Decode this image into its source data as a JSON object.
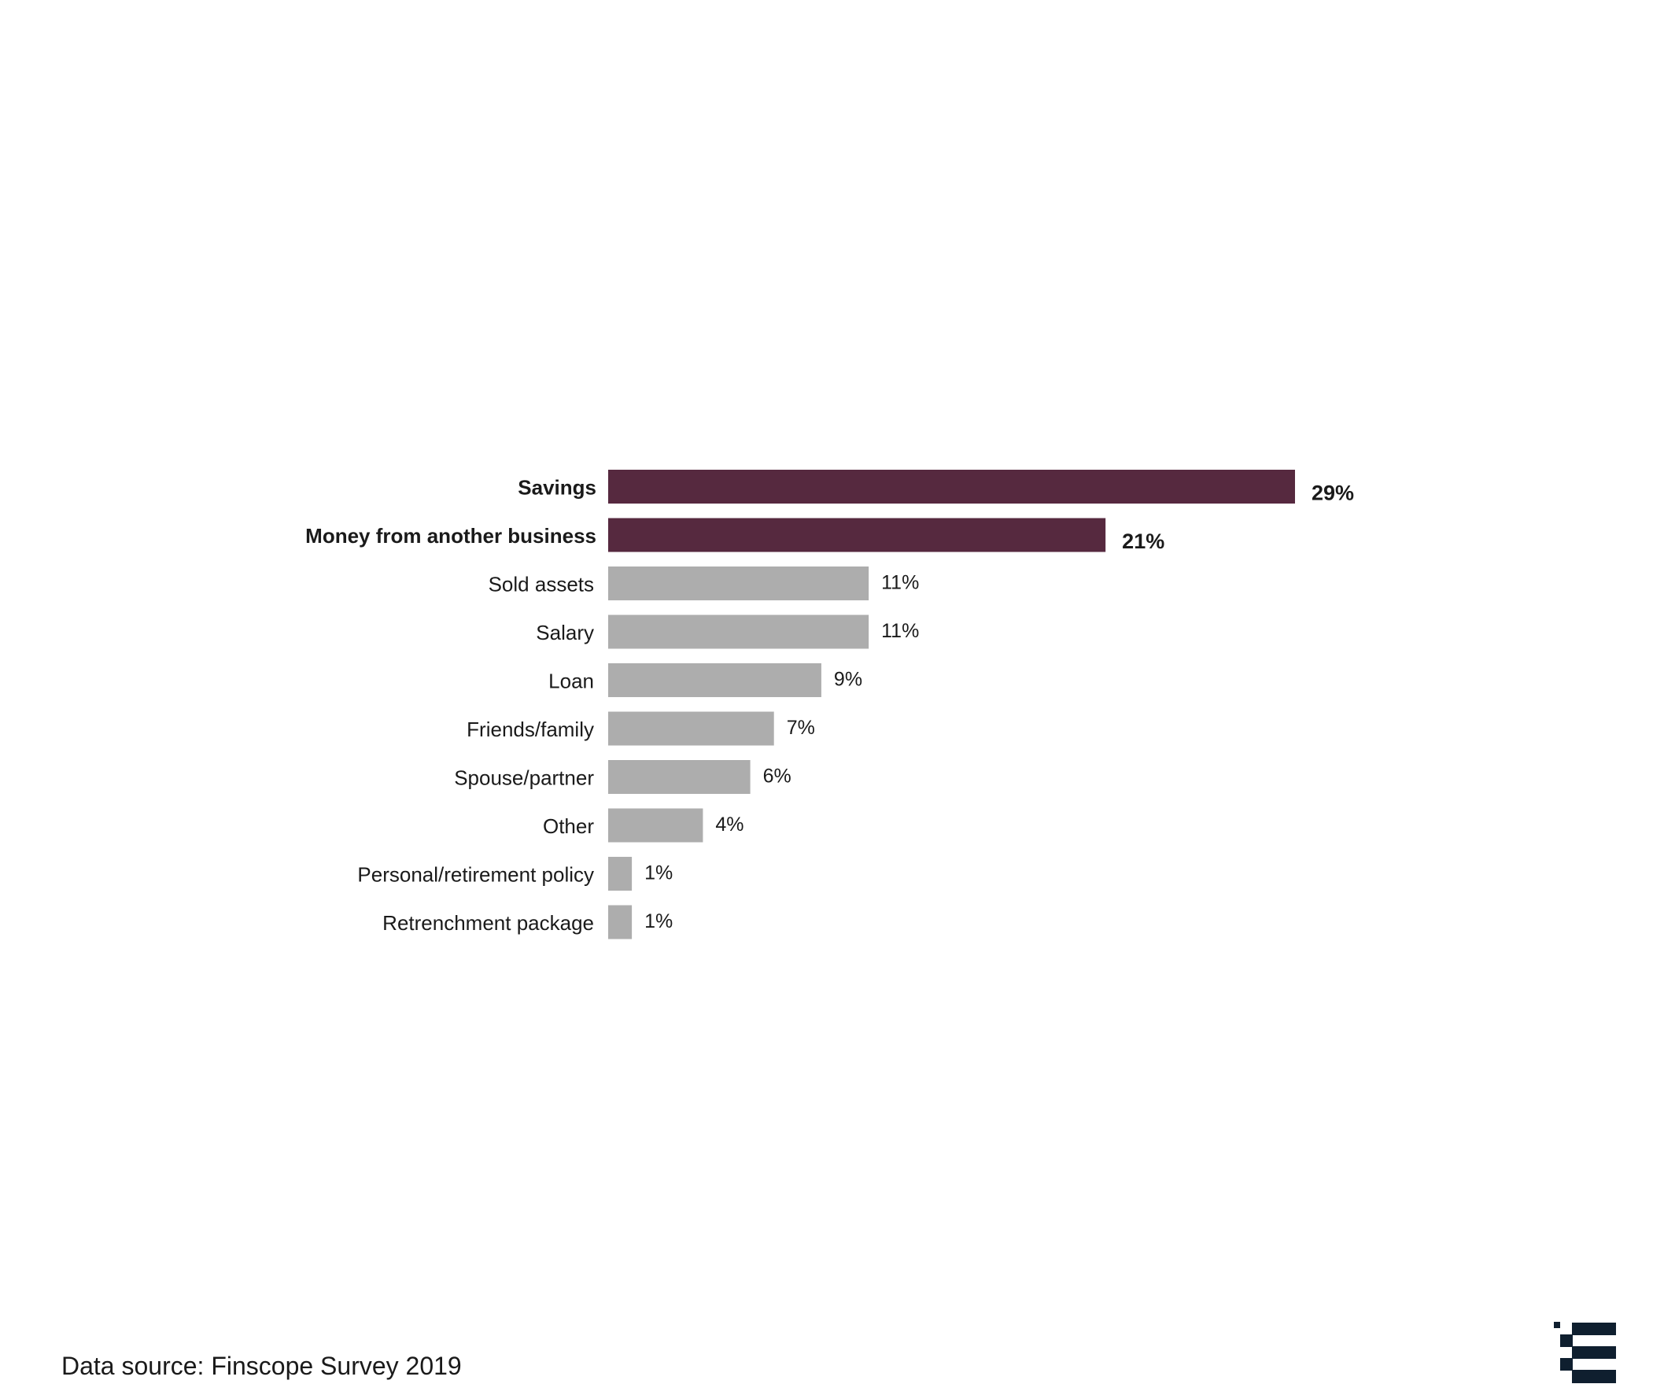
{
  "chart_data": {
    "type": "bar",
    "orientation": "horizontal",
    "categories": [
      "Savings",
      "Money from another business",
      "Sold assets",
      "Salary",
      "Loan",
      "Friends/family",
      "Spouse/partner",
      "Other",
      "Personal/retirement policy",
      "Retrenchment package"
    ],
    "values": [
      29,
      21,
      11,
      11,
      9,
      7,
      6,
      4,
      1,
      1
    ],
    "value_labels": [
      "29%",
      "21%",
      "11%",
      "11%",
      "9%",
      "7%",
      "6%",
      "4%",
      "1%",
      "1%"
    ],
    "highlighted": [
      true,
      true,
      false,
      false,
      false,
      false,
      false,
      false,
      false,
      false
    ],
    "colors": {
      "highlight": "#56293f",
      "default": "#adadad"
    },
    "xlim": [
      0,
      29
    ],
    "grid": false,
    "legend": "none",
    "title": "",
    "xlabel": "",
    "ylabel": ""
  },
  "footer": {
    "source": "Data source: Finscope Survey 2019"
  },
  "logo": {
    "icon": "brand-logo-icon",
    "color": "#0f1f2f"
  }
}
